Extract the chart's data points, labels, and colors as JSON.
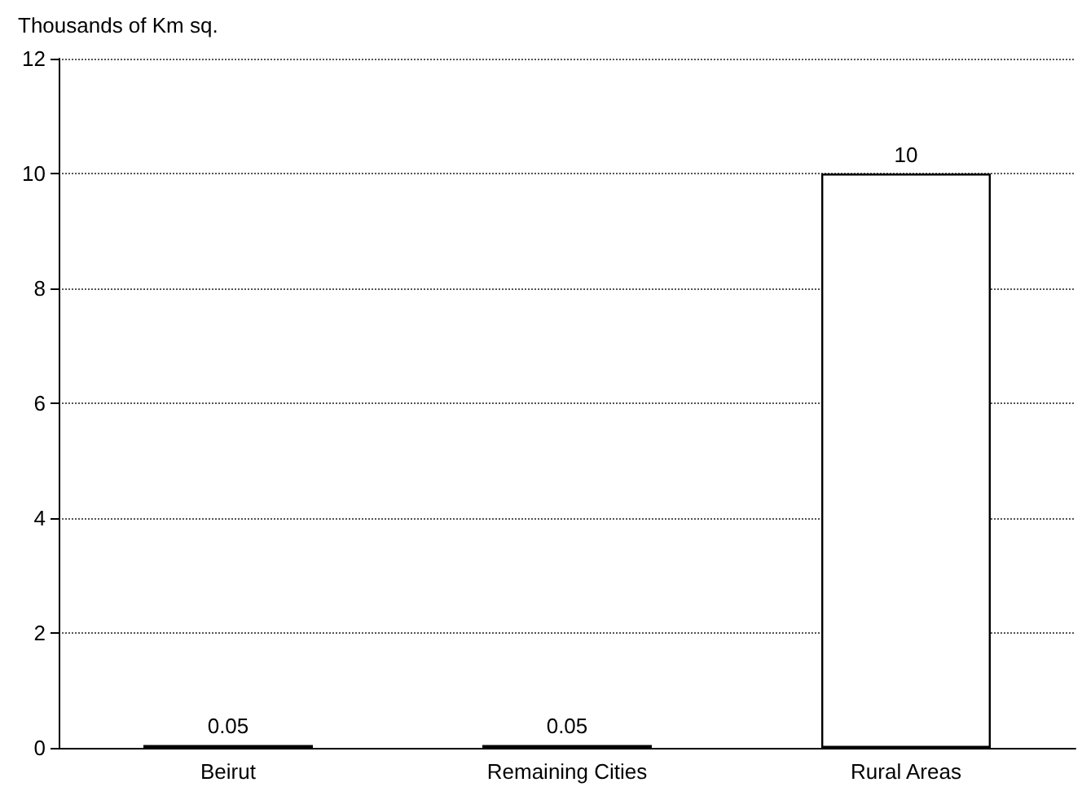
{
  "chart_data": {
    "type": "bar",
    "ylabel": "Thousands of Km sq.",
    "categories": [
      "Beirut",
      "Remaining Cities",
      "Rural Areas"
    ],
    "values": [
      0.05,
      0.05,
      10
    ],
    "color": "#ffffff",
    "ylim": [
      0,
      12
    ],
    "yticks": [
      0,
      2,
      4,
      6,
      8,
      10,
      12
    ],
    "grid": "y",
    "data_labels": true
  }
}
